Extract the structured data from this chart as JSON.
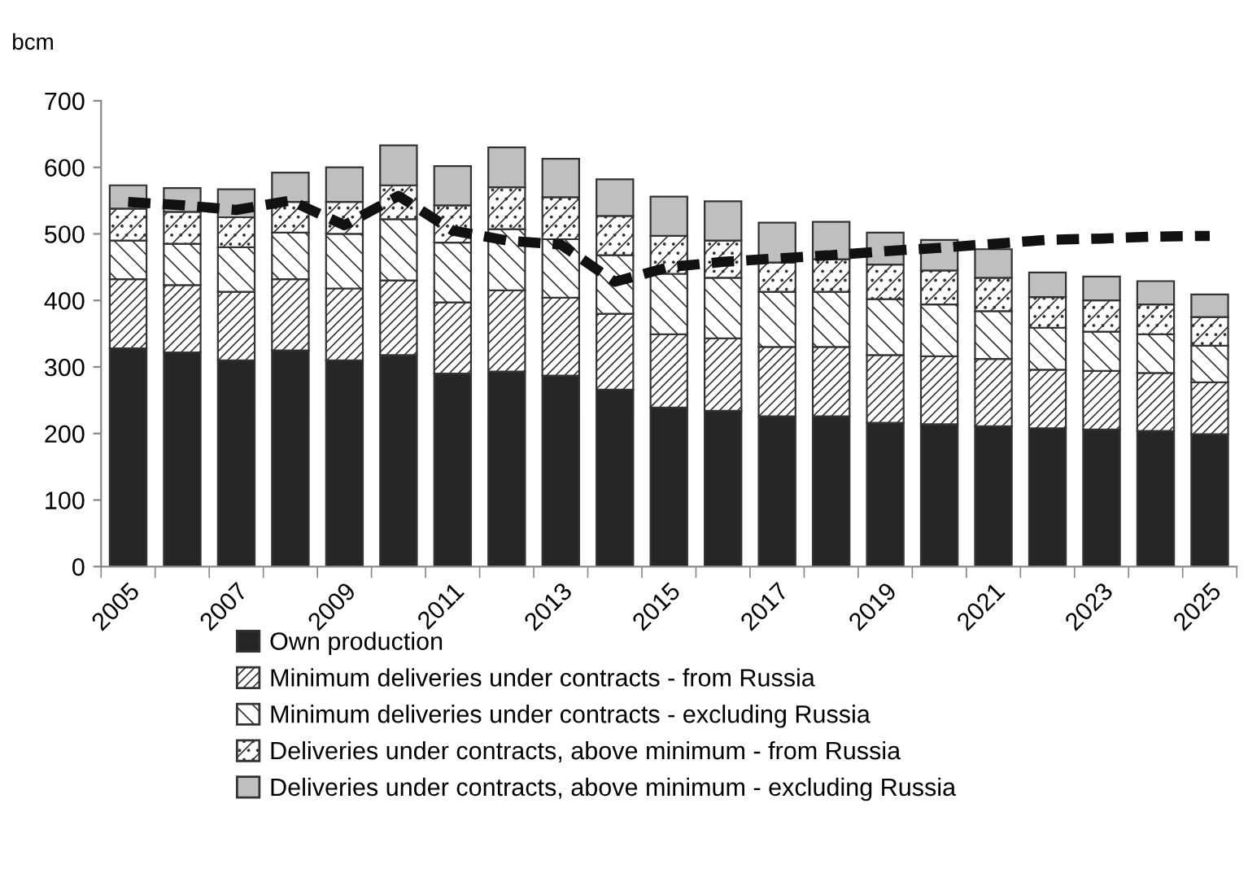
{
  "chart_data": {
    "type": "bar",
    "stacked": true,
    "ylabel": "bcm",
    "categories": [
      "2005",
      null,
      "2007",
      null,
      "2009",
      null,
      "2011",
      null,
      "2013",
      null,
      "2015",
      null,
      "2017",
      null,
      "2019",
      null,
      "2021",
      null,
      "2023",
      null,
      "2025"
    ],
    "series": [
      {
        "name": "Own production",
        "color": "#262626",
        "values": [
          328,
          322,
          310,
          325,
          310,
          318,
          290,
          293,
          287,
          266,
          239,
          234,
          226,
          226,
          216,
          214,
          211,
          208,
          206,
          204,
          199
        ]
      },
      {
        "name": "Minimum deliveries under contracts - from Russia",
        "color": "#333333",
        "values": [
          104,
          101,
          103,
          107,
          108,
          112,
          107,
          122,
          117,
          114,
          110,
          109,
          104,
          104,
          102,
          102,
          101,
          88,
          88,
          87,
          78
        ]
      },
      {
        "name": "Minimum deliveries under contracts - excluding Russia",
        "color": "#333333",
        "values": [
          58,
          62,
          67,
          70,
          82,
          92,
          90,
          92,
          88,
          88,
          91,
          91,
          83,
          83,
          84,
          78,
          72,
          63,
          59,
          58,
          55
        ]
      },
      {
        "name": "Deliveries under contracts, above minimum - from Russia",
        "color": "#333333",
        "values": [
          48,
          48,
          45,
          46,
          48,
          51,
          56,
          63,
          63,
          59,
          57,
          56,
          44,
          49,
          52,
          51,
          50,
          46,
          47,
          45,
          43
        ]
      },
      {
        "name": "Deliveries under contracts, above minimum - excluding Russia",
        "color": "#bfbfbf",
        "values": [
          35,
          36,
          42,
          44,
          52,
          60,
          59,
          60,
          58,
          55,
          59,
          59,
          60,
          56,
          48,
          46,
          43,
          37,
          36,
          35,
          34
        ]
      },
      {
        "type": "line",
        "line_style": "dashed",
        "color": "#111111",
        "values": [
          548,
          543,
          536,
          550,
          513,
          557,
          505,
          490,
          484,
          428,
          450,
          458,
          463,
          468,
          474,
          479,
          485,
          491,
          493,
          496,
          497
        ]
      }
    ],
    "ylim": [
      0,
      700
    ],
    "yticks": [
      0,
      100,
      200,
      300,
      400,
      500,
      600,
      700
    ],
    "grid": false,
    "legend": "bottom"
  }
}
